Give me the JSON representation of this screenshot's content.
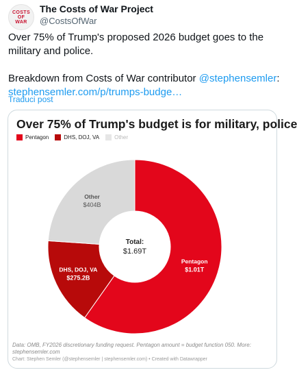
{
  "account": {
    "avatar_text": [
      "COSTS",
      "OF",
      "WAR"
    ],
    "name": "The Costs of War Project",
    "handle": "@CostsOfWar"
  },
  "tweet": {
    "line1": "Over 75% of Trump's proposed 2026 budget goes to the military and police.",
    "line2_prefix": "Breakdown from Costs of War contributor ",
    "mention": "@stephensemler",
    "line2_suffix": ":",
    "link": "stephensemler.com/p/trumps-budge…",
    "translate": "Traduci post"
  },
  "card": {
    "footer_source": "Data: OMB, FY2026 discretionary funding request. Pentagon amount = budget function 050. More: stephensemler.com",
    "footer_credit": "Chart: Stephen Semler (@stephensemler | stephensemler.com) • Created with Datawrapper"
  },
  "chart_data": {
    "type": "pie",
    "title": "Over 75% of Trump's budget is for military, police",
    "center_label": "Total:",
    "center_value": "$1.69T",
    "series": [
      {
        "name": "Pentagon",
        "value": 1010,
        "label": "Pentagon",
        "value_label": "$1.01T",
        "color": "#e3061b"
      },
      {
        "name": "DHS, DOJ, VA",
        "value": 275.2,
        "label": "DHS, DOJ, VA",
        "value_label": "$275.2B",
        "color": "#b70a0a"
      },
      {
        "name": "Other",
        "value": 404,
        "label": "Other",
        "value_label": "$404B",
        "color": "#d9d9d9"
      }
    ],
    "legend": [
      "Pentagon",
      "DHS, DOJ, VA",
      "Other"
    ],
    "legend_placement": "top-left"
  }
}
